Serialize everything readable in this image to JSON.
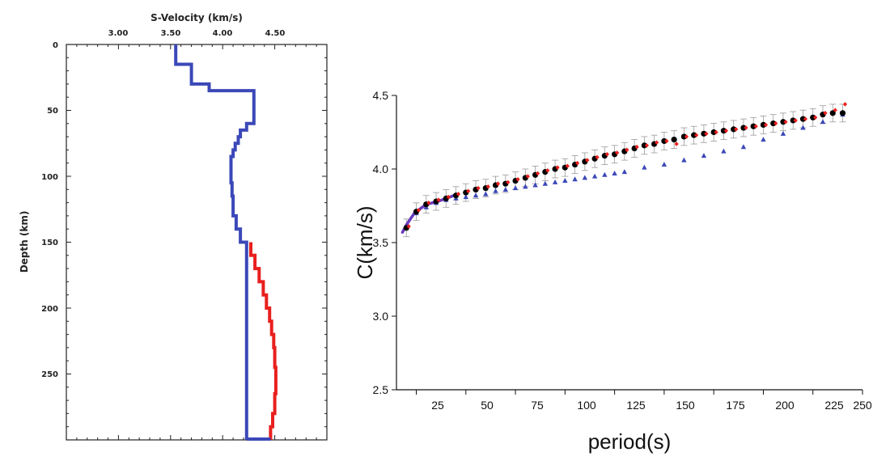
{
  "colors": {
    "blue": "#3b48b8",
    "red": "#e8201e",
    "black": "#000000",
    "error_bar": "#9a9a9a",
    "purple": "#6a3ac0"
  },
  "chart_data": [
    {
      "type": "line",
      "xlabel": "S-Velocity (km/s)",
      "ylabel": "Depth (km)",
      "xlim": [
        2.5,
        5.0
      ],
      "ylim": [
        0,
        300
      ],
      "x_axis_position": "top",
      "y_inverted": true,
      "x_ticks": [
        "3.00",
        "3.50",
        "4.00",
        "4.50"
      ],
      "y_ticks": [
        "0",
        "50",
        "100",
        "150",
        "200",
        "250"
      ],
      "series": [
        {
          "color": "blue",
          "step": true,
          "depth": [
            0,
            15,
            30,
            35,
            60,
            65,
            70,
            75,
            80,
            85,
            95,
            105,
            115,
            130,
            140,
            150,
            300
          ],
          "velocity": [
            3.55,
            3.7,
            3.87,
            4.3,
            4.23,
            4.17,
            4.15,
            4.12,
            4.1,
            4.08,
            4.08,
            4.09,
            4.1,
            4.13,
            4.17,
            4.23,
            4.23
          ]
        },
        {
          "color": "red",
          "step": true,
          "depth": [
            150,
            160,
            170,
            180,
            190,
            200,
            210,
            220,
            230,
            245,
            265,
            280,
            290,
            300
          ],
          "velocity": [
            4.27,
            4.31,
            4.35,
            4.39,
            4.42,
            4.45,
            4.47,
            4.49,
            4.5,
            4.51,
            4.5,
            4.48,
            4.46,
            4.46
          ]
        }
      ]
    },
    {
      "type": "scatter",
      "xlabel": "period(s)",
      "ylabel": "C(km/s)",
      "xlim": [
        15,
        250
      ],
      "ylim": [
        2.5,
        4.5
      ],
      "x_ticks": [
        "25",
        "50",
        "75",
        "100",
        "125",
        "150",
        "175",
        "200",
        "225",
        "250"
      ],
      "y_ticks": [
        "2.5",
        "3.0",
        "3.5",
        "4.0",
        "4.5"
      ],
      "grid": false,
      "series": [
        {
          "marker": "circle",
          "color": "black",
          "error_bars": true,
          "error": 0.06,
          "x": [
            20,
            25,
            30,
            35,
            40,
            45,
            50,
            55,
            60,
            65,
            70,
            75,
            80,
            85,
            90,
            95,
            100,
            105,
            110,
            115,
            120,
            125,
            130,
            135,
            140,
            145,
            150,
            155,
            160,
            165,
            170,
            175,
            180,
            185,
            190,
            195,
            200,
            205,
            210,
            215,
            220,
            225,
            230,
            235,
            240
          ],
          "y": [
            3.6,
            3.71,
            3.76,
            3.78,
            3.8,
            3.82,
            3.84,
            3.86,
            3.87,
            3.89,
            3.9,
            3.92,
            3.94,
            3.96,
            3.98,
            4.0,
            4.01,
            4.03,
            4.05,
            4.07,
            4.09,
            4.1,
            4.12,
            4.14,
            4.16,
            4.17,
            4.19,
            4.2,
            4.22,
            4.23,
            4.24,
            4.25,
            4.26,
            4.27,
            4.28,
            4.29,
            4.3,
            4.31,
            4.32,
            4.33,
            4.34,
            4.35,
            4.37,
            4.38,
            4.38
          ]
        },
        {
          "marker": "diamond",
          "color": "red",
          "x": [
            20,
            25,
            30,
            35,
            40,
            45,
            50,
            55,
            60,
            65,
            70,
            75,
            80,
            85,
            90,
            95,
            100,
            105,
            110,
            115,
            120,
            125,
            130,
            135,
            140,
            145,
            150,
            155,
            160,
            165,
            170,
            175,
            180,
            185,
            190,
            195,
            200,
            205,
            210,
            215,
            220,
            225,
            230,
            235,
            240
          ],
          "y": [
            3.61,
            3.72,
            3.77,
            3.79,
            3.81,
            3.83,
            3.85,
            3.87,
            3.88,
            3.9,
            3.91,
            3.93,
            3.95,
            3.97,
            3.99,
            4.01,
            4.02,
            4.04,
            4.06,
            4.08,
            4.1,
            4.11,
            4.13,
            4.15,
            4.16,
            4.18,
            4.19,
            4.17,
            4.22,
            4.23,
            4.24,
            4.25,
            4.26,
            4.27,
            4.28,
            4.29,
            4.3,
            4.31,
            4.32,
            4.33,
            4.34,
            4.35,
            4.38,
            4.4,
            4.44
          ]
        },
        {
          "marker": "triangle",
          "color": "blue",
          "x": [
            20,
            25,
            30,
            35,
            40,
            45,
            50,
            55,
            60,
            65,
            70,
            75,
            80,
            85,
            90,
            95,
            100,
            105,
            110,
            115,
            120,
            125,
            130,
            140,
            150,
            160,
            170,
            180,
            190,
            200,
            210,
            220,
            230,
            240
          ],
          "y": [
            3.6,
            3.7,
            3.74,
            3.77,
            3.79,
            3.8,
            3.81,
            3.82,
            3.83,
            3.85,
            3.86,
            3.87,
            3.88,
            3.89,
            3.9,
            3.91,
            3.92,
            3.93,
            3.94,
            3.95,
            3.96,
            3.97,
            3.98,
            4.01,
            4.03,
            4.06,
            4.09,
            4.12,
            4.15,
            4.2,
            4.24,
            4.28,
            4.32,
            4.37
          ]
        },
        {
          "marker": "line",
          "color": "purple",
          "x": [
            18,
            20,
            22,
            24,
            26,
            28,
            30,
            33,
            36,
            40,
            44
          ],
          "y": [
            3.57,
            3.62,
            3.66,
            3.7,
            3.72,
            3.74,
            3.76,
            3.77,
            3.78,
            3.8,
            3.82
          ]
        }
      ]
    }
  ]
}
